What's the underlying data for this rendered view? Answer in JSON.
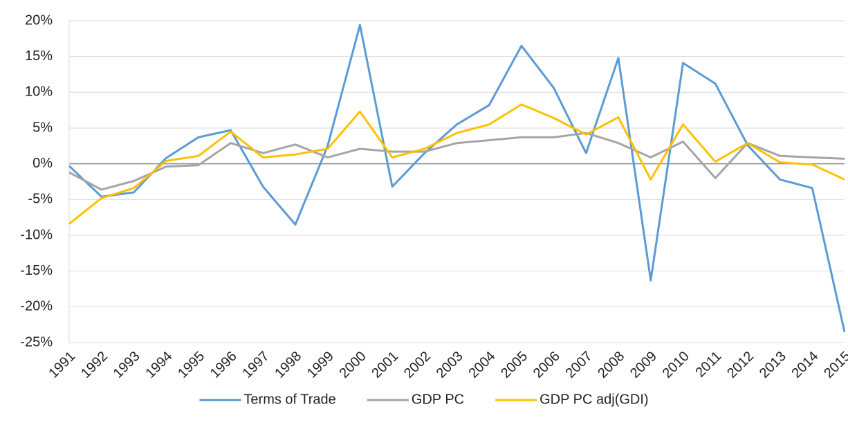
{
  "chart_data": {
    "type": "line",
    "categories": [
      "1991",
      "1992",
      "1993",
      "1994",
      "1995",
      "1996",
      "1997",
      "1998",
      "1999",
      "2000",
      "2001",
      "2002",
      "2003",
      "2004",
      "2005",
      "2006",
      "2007",
      "2008",
      "2009",
      "2010",
      "2011",
      "2012",
      "2013",
      "2014",
      "2015"
    ],
    "series": [
      {
        "name": "Terms of Trade",
        "color": "#5b9bd5",
        "values": [
          -0.3,
          -4.6,
          -4.0,
          0.8,
          3.7,
          4.7,
          -3.2,
          -8.5,
          2.5,
          19.4,
          -3.2,
          1.5,
          5.5,
          8.2,
          16.5,
          10.6,
          1.5,
          14.8,
          -16.3,
          14.1,
          11.2,
          2.6,
          -2.2,
          -3.4,
          -23.5
        ]
      },
      {
        "name": "GDP PC",
        "color": "#a5a5a5",
        "values": [
          -1.2,
          -3.6,
          -2.4,
          -0.4,
          -0.2,
          2.9,
          1.5,
          2.7,
          0.9,
          2.1,
          1.7,
          1.7,
          2.9,
          3.3,
          3.7,
          3.7,
          4.3,
          2.9,
          0.9,
          3.1,
          -2.0,
          2.9,
          1.1,
          0.9,
          0.7
        ]
      },
      {
        "name": "GDP PC adj(GDI)",
        "color": "#ffc000",
        "values": [
          -8.4,
          -4.8,
          -3.4,
          0.4,
          1.1,
          4.5,
          0.9,
          1.3,
          2.1,
          7.3,
          0.9,
          2.1,
          4.3,
          5.5,
          8.3,
          6.4,
          4.1,
          6.5,
          -2.2,
          5.5,
          0.3,
          2.9,
          0.2,
          -0.1,
          -2.2
        ]
      }
    ],
    "ylim": [
      -25,
      20
    ],
    "yticks": [
      {
        "value": -25,
        "label": "-25%"
      },
      {
        "value": -20,
        "label": "-20%"
      },
      {
        "value": -15,
        "label": "-15%"
      },
      {
        "value": -10,
        "label": "-10%"
      },
      {
        "value": -5,
        "label": "-5%"
      },
      {
        "value": 0,
        "label": "0%"
      },
      {
        "value": 5,
        "label": "5%"
      },
      {
        "value": 10,
        "label": "10%"
      },
      {
        "value": 15,
        "label": "15%"
      },
      {
        "value": 20,
        "label": "20%"
      }
    ],
    "grid": true,
    "legend": "bottom"
  }
}
